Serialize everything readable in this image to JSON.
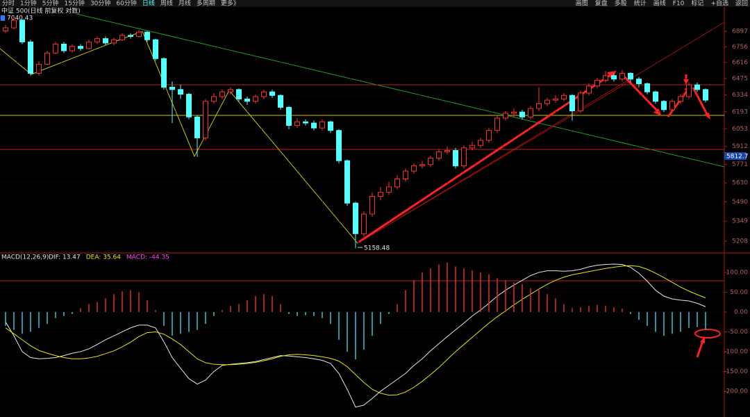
{
  "toolbar": {
    "left": [
      "分时",
      "1分钟",
      "5分钟",
      "15分钟",
      "30分钟",
      "60分钟",
      "日线",
      "周线",
      "月线",
      "多周期",
      "更多》"
    ],
    "selected_index": 6,
    "right": [
      "画图",
      "复盘",
      "多股",
      "统计",
      "画线",
      "F10",
      "标记",
      "+自选",
      "返回"
    ]
  },
  "chart_data": [
    {
      "type": "candlestick",
      "title": "中证 500(日线 前复权 对数)",
      "log_scale": true,
      "up_color": "#ff3232",
      "down_color": "#54ffff",
      "grid": true,
      "ylim": [
        5145,
        7126
      ],
      "yticks": [
        6897,
        6756,
        6616,
        6475,
        6334,
        6193,
        6053,
        5912,
        5771,
        5630,
        5490,
        5349,
        5208
      ],
      "annotations": [
        "7040.43",
        "5158.48",
        "5812.7"
      ],
      "open": [
        6900,
        6930,
        7000,
        6800,
        6520,
        6600,
        6700,
        6780,
        6720,
        6760,
        6740,
        6800,
        6830,
        6790,
        6820,
        6860,
        6850,
        6890,
        6820,
        6650,
        6400,
        6380,
        6340,
        6150,
        5980,
        6280,
        6320,
        6360,
        6380,
        6300,
        6280,
        6320,
        6360,
        6330,
        6230,
        6080,
        6110,
        6100,
        6060,
        6110,
        6040,
        5800,
        5480,
        5260,
        5400,
        5530,
        5560,
        5600,
        5660,
        5720,
        5760,
        5770,
        5820,
        5870,
        5880,
        5760,
        5900,
        5920,
        5960,
        6040,
        6140,
        6180,
        6190,
        6150,
        6220,
        6260,
        6290,
        6300,
        6330,
        6200,
        6350,
        6410,
        6460,
        6500,
        6470,
        6520,
        6470,
        6430,
        6360,
        6280,
        6210,
        6280,
        6320,
        6420,
        6380
      ],
      "high": [
        6955,
        7040.43,
        7010,
        6820,
        6630,
        6720,
        6800,
        6800,
        6780,
        6780,
        6820,
        6850,
        6850,
        6840,
        6880,
        6880,
        6910,
        6900,
        6830,
        6660,
        6450,
        6420,
        6350,
        6160,
        6300,
        6350,
        6380,
        6400,
        6390,
        6320,
        6340,
        6380,
        6380,
        6340,
        6240,
        6140,
        6130,
        6120,
        6130,
        6120,
        6050,
        5810,
        5490,
        5420,
        5560,
        5600,
        5640,
        5690,
        5740,
        5780,
        5800,
        5840,
        5890,
        5910,
        5900,
        5920,
        5950,
        5980,
        6060,
        6160,
        6200,
        6220,
        6210,
        6240,
        6400,
        6310,
        6330,
        6350,
        6340,
        6370,
        6430,
        6480,
        6540,
        6520,
        6550,
        6530,
        6490,
        6440,
        6370,
        6290,
        6300,
        6340,
        6440,
        6440,
        6390
      ],
      "low": [
        6880,
        6915,
        6780,
        6500,
        6500,
        6590,
        6690,
        6700,
        6705,
        6720,
        6730,
        6780,
        6770,
        6770,
        6810,
        6830,
        6840,
        6800,
        6630,
        6380,
        6100,
        6300,
        6130,
        5830,
        5960,
        6260,
        6300,
        6340,
        6280,
        6250,
        6260,
        6300,
        6310,
        6210,
        6050,
        6060,
        6080,
        6040,
        6040,
        6020,
        5780,
        5460,
        5158.48,
        5240,
        5380,
        5500,
        5540,
        5580,
        5640,
        5700,
        5740,
        5750,
        5800,
        5850,
        5740,
        5740,
        5880,
        5900,
        5940,
        6020,
        6120,
        6150,
        6130,
        6130,
        6200,
        6240,
        6270,
        6280,
        6120,
        6180,
        6330,
        6390,
        6440,
        6450,
        6450,
        6440,
        6400,
        6340,
        6260,
        6190,
        6190,
        6260,
        6300,
        6360,
        6270
      ],
      "close": [
        6930,
        7000,
        6800,
        6520,
        6600,
        6700,
        6780,
        6720,
        6760,
        6740,
        6800,
        6830,
        6790,
        6820,
        6860,
        6850,
        6890,
        6820,
        6650,
        6400,
        6380,
        6340,
        6150,
        5980,
        6280,
        6320,
        6360,
        6380,
        6300,
        6280,
        6320,
        6360,
        6330,
        6230,
        6080,
        6110,
        6100,
        6060,
        6110,
        6040,
        5800,
        5480,
        5260,
        5400,
        5530,
        5560,
        5600,
        5660,
        5720,
        5760,
        5770,
        5820,
        5870,
        5880,
        5760,
        5900,
        5920,
        5960,
        6040,
        6140,
        6180,
        6190,
        6150,
        6220,
        6260,
        6290,
        6300,
        6330,
        6200,
        6350,
        6410,
        6460,
        6500,
        6470,
        6520,
        6470,
        6430,
        6360,
        6280,
        6210,
        6280,
        6320,
        6420,
        6380,
        6290
      ]
    },
    {
      "type": "macd",
      "title": "MACD(12,26,9)",
      "up_color": "#e03030",
      "down_color": "#3cc8d0",
      "grid": true,
      "ylim": [
        -265,
        142
      ],
      "yticks": [
        {
          "value": 100,
          "label": "100.00"
        },
        {
          "value": 50,
          "label": "50.00"
        },
        {
          "value": 0,
          "label": "0.00"
        },
        {
          "value": -50,
          "label": "-50.00"
        },
        {
          "value": -100,
          "label": "-100.00"
        },
        {
          "value": -150,
          "label": "-150.00"
        },
        {
          "value": -200,
          "label": "-200.00"
        }
      ],
      "series": [
        {
          "name": "DIF: 13.47",
          "color": "#e8e8e8",
          "kind": "line",
          "values": [
            -25,
            -60,
            -100,
            -115,
            -118,
            -117,
            -115,
            -110,
            -104,
            -100,
            -93,
            -82,
            -70,
            -60,
            -50,
            -40,
            -33,
            -33,
            -40,
            -75,
            -115,
            -142,
            -168,
            -182,
            -172,
            -150,
            -135,
            -132,
            -130,
            -128,
            -125,
            -120,
            -115,
            -110,
            -111,
            -113,
            -115,
            -118,
            -122,
            -130,
            -155,
            -195,
            -240,
            -235,
            -218,
            -200,
            -185,
            -170,
            -155,
            -135,
            -118,
            -98,
            -80,
            -62,
            -45,
            -28,
            -10,
            5,
            22,
            40,
            55,
            68,
            80,
            92,
            100,
            104,
            104,
            103,
            104,
            108,
            114,
            118,
            120,
            121,
            120,
            113,
            98,
            78,
            55,
            40,
            33,
            30,
            28,
            22,
            13.47
          ]
        },
        {
          "name": "DEA: 35.64",
          "color": "#e8e800",
          "kind": "line",
          "values": [
            -40,
            -55,
            -70,
            -85,
            -97,
            -104,
            -110,
            -115,
            -118,
            -118,
            -116,
            -112,
            -105,
            -98,
            -88,
            -76,
            -62,
            -52,
            -50,
            -56,
            -68,
            -82,
            -100,
            -118,
            -128,
            -132,
            -133,
            -133,
            -132,
            -130,
            -127,
            -123,
            -118,
            -112,
            -108,
            -107,
            -108,
            -110,
            -113,
            -117,
            -124,
            -138,
            -158,
            -178,
            -195,
            -205,
            -210,
            -209,
            -202,
            -190,
            -175,
            -158,
            -140,
            -120,
            -100,
            -82,
            -64,
            -46,
            -28,
            -12,
            3,
            18,
            32,
            45,
            58,
            70,
            80,
            88,
            94,
            98,
            102,
            106,
            110,
            113,
            116,
            117,
            115,
            108,
            98,
            87,
            75,
            63,
            53,
            44,
            35.64
          ]
        },
        {
          "name": "MACD: -44.35",
          "color": "#ff40ff",
          "kind": "bar",
          "values": [
            -35,
            -45,
            -55,
            -50,
            -40,
            -30,
            -15,
            -10,
            -5,
            10,
            20,
            25,
            35,
            45,
            52,
            55,
            50,
            30,
            5,
            -35,
            -60,
            -55,
            -50,
            -45,
            -30,
            -10,
            5,
            15,
            20,
            30,
            40,
            45,
            40,
            20,
            -5,
            -10,
            -8,
            -10,
            -15,
            -30,
            -70,
            -100,
            -120,
            -95,
            -60,
            -30,
            -5,
            20,
            55,
            80,
            100,
            110,
            120,
            125,
            115,
            110,
            105,
            100,
            95,
            85,
            80,
            75,
            70,
            60,
            55,
            45,
            35,
            20,
            10,
            12,
            15,
            18,
            15,
            12,
            8,
            -5,
            -20,
            -35,
            -50,
            -60,
            -55,
            -50,
            -40,
            -38,
            -44.35
          ]
        }
      ]
    }
  ]
}
